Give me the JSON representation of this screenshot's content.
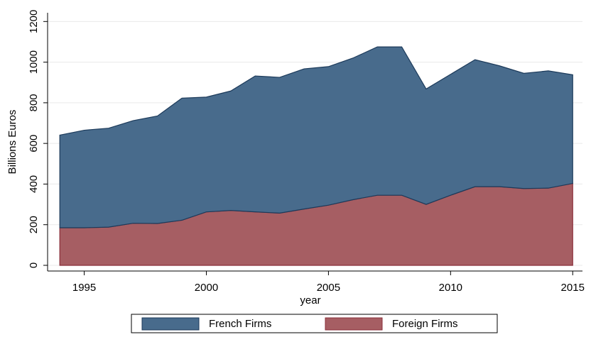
{
  "chart_data": {
    "type": "stacked_area",
    "x": [
      1994,
      1995,
      1996,
      1997,
      1998,
      1999,
      2000,
      2001,
      2002,
      2003,
      2004,
      2005,
      2006,
      2007,
      2008,
      2009,
      2010,
      2011,
      2012,
      2013,
      2014,
      2015
    ],
    "series": [
      {
        "name": "Foreign Firms",
        "color": "#a65e63",
        "edge": "#8a2e3a",
        "values": [
          185,
          185,
          188,
          207,
          206,
          222,
          263,
          270,
          263,
          257,
          277,
          296,
          323,
          345,
          345,
          300,
          345,
          387,
          387,
          378,
          380,
          403
        ]
      },
      {
        "name": "French Firms",
        "color": "#486b8c",
        "edge": "#1c3a5a",
        "values": [
          456,
          480,
          487,
          505,
          529,
          601,
          565,
          588,
          669,
          668,
          690,
          682,
          697,
          730,
          730,
          568,
          595,
          625,
          595,
          567,
          577,
          535
        ]
      }
    ],
    "xlim": [
      1993.5,
      2015.4
    ],
    "xticks": [
      1995,
      2000,
      2005,
      2010,
      2015
    ],
    "ylim": [
      -28,
      1243
    ],
    "yticks": [
      0,
      200,
      400,
      600,
      800,
      1000,
      1200
    ],
    "xlabel": "year",
    "ylabel": "Billions Euros",
    "grid": true,
    "legend": "bottom"
  }
}
